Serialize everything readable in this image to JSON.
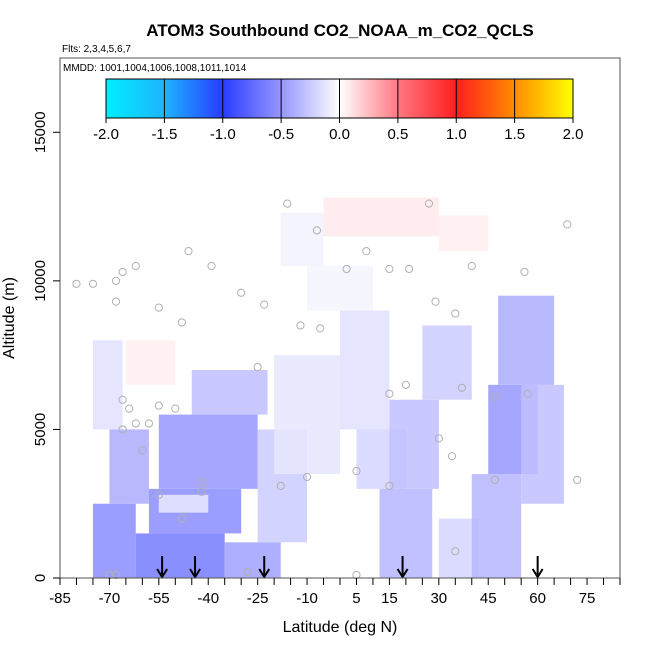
{
  "chart_data": {
    "type": "heatmap",
    "title": "ATOM3 Southbound CO2_NOAA_m_CO2_QCLS",
    "flights_label": "Flts: 2,3,4,5,6,7",
    "dates_label": "MMDD: 1001,1004,1006,1008,1011,1014",
    "xlabel": "Latitude (deg N)",
    "ylabel": "Altitude (m)",
    "xlim": [
      -85,
      85
    ],
    "ylim": [
      0,
      17500
    ],
    "x_tick_labels": [
      "-85",
      "-70",
      "-55",
      "-40",
      "-25",
      "-10",
      "5",
      "15",
      "30",
      "45",
      "60",
      "75"
    ],
    "x_tick_values": [
      -85,
      -70,
      -55,
      -40,
      -25,
      -10,
      5,
      15,
      30,
      45,
      60,
      75
    ],
    "x_minor_step": 5,
    "y_tick_labels": [
      "0",
      "5000",
      "10000",
      "15000"
    ],
    "y_tick_values": [
      0,
      5000,
      10000,
      15000
    ],
    "colorbar": {
      "min": -2.0,
      "max": 2.0,
      "tick_labels": [
        "-2.0",
        "-1.5",
        "-1.0",
        "-0.5",
        "0.0",
        "0.5",
        "1.0",
        "1.5",
        "2.0"
      ],
      "tick_values": [
        -2.0,
        -1.5,
        -1.0,
        -0.5,
        0.0,
        0.5,
        1.0,
        1.5,
        2.0
      ]
    },
    "arrow_latitudes": [
      -54,
      -44,
      -23,
      19,
      60
    ],
    "field_cells": [
      {
        "lat": [
          -75,
          -62
        ],
        "alt": [
          0,
          2500
        ],
        "v": -0.55
      },
      {
        "lat": [
          -70,
          -58
        ],
        "alt": [
          2500,
          5000
        ],
        "v": -0.4
      },
      {
        "lat": [
          -75,
          -66
        ],
        "alt": [
          5000,
          8000
        ],
        "v": -0.15
      },
      {
        "lat": [
          -62,
          -35
        ],
        "alt": [
          0,
          1500
        ],
        "v": -0.65
      },
      {
        "lat": [
          -58,
          -30
        ],
        "alt": [
          1500,
          3000
        ],
        "v": -0.55
      },
      {
        "lat": [
          -55,
          -25
        ],
        "alt": [
          3000,
          5500
        ],
        "v": -0.5
      },
      {
        "lat": [
          -45,
          -22
        ],
        "alt": [
          5500,
          7000
        ],
        "v": -0.3
      },
      {
        "lat": [
          -35,
          -18
        ],
        "alt": [
          0,
          1200
        ],
        "v": -0.45
      },
      {
        "lat": [
          -25,
          -10
        ],
        "alt": [
          1200,
          5000
        ],
        "v": -0.25
      },
      {
        "lat": [
          -55,
          -40
        ],
        "alt": [
          2200,
          2800
        ],
        "v": -0.1
      },
      {
        "lat": [
          -20,
          0
        ],
        "alt": [
          3500,
          7500
        ],
        "v": -0.12
      },
      {
        "lat": [
          0,
          15
        ],
        "alt": [
          5000,
          9000
        ],
        "v": -0.15
      },
      {
        "lat": [
          5,
          20
        ],
        "alt": [
          3000,
          5000
        ],
        "v": -0.2
      },
      {
        "lat": [
          12,
          28
        ],
        "alt": [
          0,
          3000
        ],
        "v": -0.35
      },
      {
        "lat": [
          15,
          30
        ],
        "alt": [
          3000,
          6000
        ],
        "v": -0.3
      },
      {
        "lat": [
          25,
          40
        ],
        "alt": [
          6000,
          8500
        ],
        "v": -0.25
      },
      {
        "lat": [
          30,
          42
        ],
        "alt": [
          0,
          2000
        ],
        "v": -0.2
      },
      {
        "lat": [
          40,
          55
        ],
        "alt": [
          0,
          3500
        ],
        "v": -0.35
      },
      {
        "lat": [
          45,
          60
        ],
        "alt": [
          3500,
          6500
        ],
        "v": -0.5
      },
      {
        "lat": [
          48,
          65
        ],
        "alt": [
          6500,
          9500
        ],
        "v": -0.4
      },
      {
        "lat": [
          55,
          68
        ],
        "alt": [
          2500,
          6500
        ],
        "v": -0.3
      },
      {
        "lat": [
          -10,
          10
        ],
        "alt": [
          9000,
          10500
        ],
        "v": -0.05
      },
      {
        "lat": [
          -18,
          -5
        ],
        "alt": [
          10500,
          12300
        ],
        "v": -0.06
      },
      {
        "lat": [
          -5,
          30
        ],
        "alt": [
          11500,
          12800
        ],
        "v": 0.08
      },
      {
        "lat": [
          30,
          45
        ],
        "alt": [
          11000,
          12200
        ],
        "v": 0.06
      },
      {
        "lat": [
          -65,
          -50
        ],
        "alt": [
          6500,
          8000
        ],
        "v": 0.06
      }
    ],
    "sample_points": [
      {
        "lat": -80,
        "alt": 9900
      },
      {
        "lat": -75,
        "alt": 9900
      },
      {
        "lat": -68,
        "alt": 10000
      },
      {
        "lat": -66,
        "alt": 10300
      },
      {
        "lat": -68,
        "alt": 9300
      },
      {
        "lat": -62,
        "alt": 10500
      },
      {
        "lat": -55,
        "alt": 9100
      },
      {
        "lat": -46,
        "alt": 11000
      },
      {
        "lat": -48,
        "alt": 8600
      },
      {
        "lat": -39,
        "alt": 10500
      },
      {
        "lat": -30,
        "alt": 9600
      },
      {
        "lat": -23,
        "alt": 9200
      },
      {
        "lat": -16,
        "alt": 12600
      },
      {
        "lat": -12,
        "alt": 8500
      },
      {
        "lat": -7,
        "alt": 11700
      },
      {
        "lat": -6,
        "alt": 8400
      },
      {
        "lat": 2,
        "alt": 10400
      },
      {
        "lat": 8,
        "alt": 11000
      },
      {
        "lat": 15,
        "alt": 10400
      },
      {
        "lat": 21,
        "alt": 10400
      },
      {
        "lat": 27,
        "alt": 12600
      },
      {
        "lat": 29,
        "alt": 9300
      },
      {
        "lat": 35,
        "alt": 8900
      },
      {
        "lat": 40,
        "alt": 10500
      },
      {
        "lat": 56,
        "alt": 10300
      },
      {
        "lat": 69,
        "alt": 11900
      },
      {
        "lat": -64,
        "alt": 5700
      },
      {
        "lat": -66,
        "alt": 6000
      },
      {
        "lat": -58,
        "alt": 5200
      },
      {
        "lat": -62,
        "alt": 5200
      },
      {
        "lat": -55,
        "alt": 5800
      },
      {
        "lat": -50,
        "alt": 5700
      },
      {
        "lat": -66,
        "alt": 5000
      },
      {
        "lat": -60,
        "alt": 4300
      },
      {
        "lat": -42,
        "alt": 3200
      },
      {
        "lat": -42,
        "alt": 2900
      },
      {
        "lat": -55,
        "alt": 2800
      },
      {
        "lat": -48,
        "alt": 2000
      },
      {
        "lat": -25,
        "alt": 7100
      },
      {
        "lat": -18,
        "alt": 3100
      },
      {
        "lat": -10,
        "alt": 3400
      },
      {
        "lat": 5,
        "alt": 3600
      },
      {
        "lat": 15,
        "alt": 3100
      },
      {
        "lat": 20,
        "alt": 6500
      },
      {
        "lat": 15,
        "alt": 6200
      },
      {
        "lat": 30,
        "alt": 4700
      },
      {
        "lat": 34,
        "alt": 4100
      },
      {
        "lat": 37,
        "alt": 6400
      },
      {
        "lat": 47,
        "alt": 6100
      },
      {
        "lat": 57,
        "alt": 6200
      },
      {
        "lat": 47,
        "alt": 3300
      },
      {
        "lat": 72,
        "alt": 3300
      },
      {
        "lat": 35,
        "alt": 900
      },
      {
        "lat": -68,
        "alt": 100
      },
      {
        "lat": -70,
        "alt": 100
      },
      {
        "lat": -28,
        "alt": 200
      },
      {
        "lat": 5,
        "alt": 100
      }
    ]
  }
}
